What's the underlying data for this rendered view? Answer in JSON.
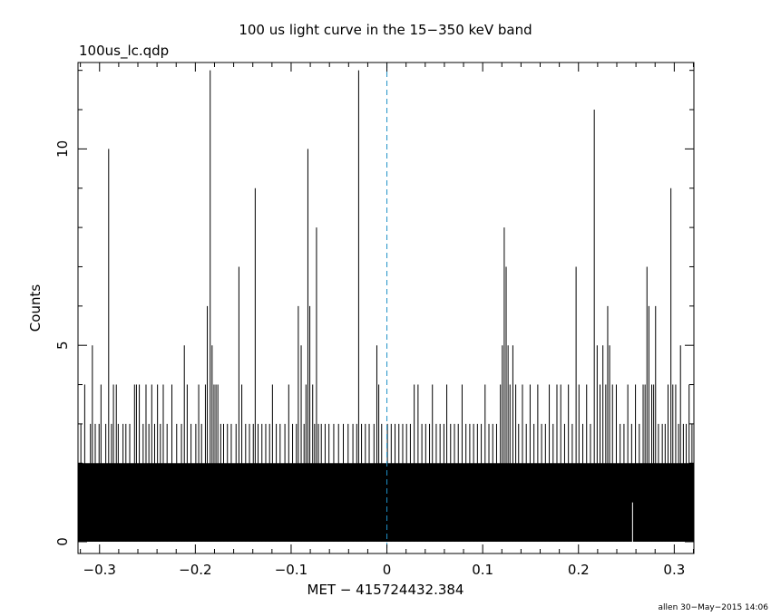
{
  "chart_data": {
    "type": "line",
    "title": "100 us light curve in the 15−350 keV band",
    "file_label": "100us_lc.qdp",
    "xlabel": "MET − 415724432.384",
    "ylabel": "Counts",
    "footer": "allen 30−May−2015 14:06",
    "xlim": [
      -0.3225,
      0.3205
    ],
    "ylim": [
      -0.3,
      12.2
    ],
    "x_ticks": [
      {
        "value": -0.3,
        "label": "−0.3"
      },
      {
        "value": -0.2,
        "label": "−0.2"
      },
      {
        "value": -0.1,
        "label": "−0.1"
      },
      {
        "value": 0,
        "label": "0"
      },
      {
        "value": 0.1,
        "label": "0.1"
      },
      {
        "value": 0.2,
        "label": "0.2"
      },
      {
        "value": 0.3,
        "label": "0.3"
      }
    ],
    "x_minor_step": 0.02,
    "y_ticks": [
      {
        "value": 0,
        "label": "0"
      },
      {
        "value": 5,
        "label": "5"
      },
      {
        "value": 10,
        "label": "10"
      }
    ],
    "y_minor_step": 1,
    "trigger_line": {
      "x": 0,
      "color": "#1e90c8",
      "style": "dashed"
    },
    "baseline": {
      "x_range": [
        -0.3225,
        0.3205
      ],
      "lower": 1,
      "upper": 2,
      "gap_x": 0.2555
    },
    "spikes": [
      [
        -0.3195,
        3
      ],
      [
        -0.3155,
        4
      ],
      [
        -0.3095,
        3
      ],
      [
        -0.3075,
        5
      ],
      [
        -0.3045,
        3
      ],
      [
        -0.3005,
        3
      ],
      [
        -0.2985,
        4
      ],
      [
        -0.2935,
        3
      ],
      [
        -0.2905,
        10
      ],
      [
        -0.2875,
        3
      ],
      [
        -0.2855,
        4
      ],
      [
        -0.2825,
        4
      ],
      [
        -0.2805,
        3
      ],
      [
        -0.2755,
        3
      ],
      [
        -0.2725,
        3
      ],
      [
        -0.2685,
        3
      ],
      [
        -0.2635,
        4
      ],
      [
        -0.2615,
        4
      ],
      [
        -0.2585,
        4
      ],
      [
        -0.2545,
        3
      ],
      [
        -0.2515,
        4
      ],
      [
        -0.2485,
        3
      ],
      [
        -0.2455,
        4
      ],
      [
        -0.2425,
        3
      ],
      [
        -0.2395,
        4
      ],
      [
        -0.2365,
        3
      ],
      [
        -0.2335,
        4
      ],
      [
        -0.2295,
        3
      ],
      [
        -0.2245,
        4
      ],
      [
        -0.2195,
        3
      ],
      [
        -0.2145,
        3
      ],
      [
        -0.2115,
        5
      ],
      [
        -0.2085,
        4
      ],
      [
        -0.2045,
        3
      ],
      [
        -0.1995,
        3
      ],
      [
        -0.1965,
        4
      ],
      [
        -0.1935,
        3
      ],
      [
        -0.1895,
        4
      ],
      [
        -0.1875,
        6
      ],
      [
        -0.1845,
        12
      ],
      [
        -0.1825,
        5
      ],
      [
        -0.1805,
        4
      ],
      [
        -0.1785,
        4
      ],
      [
        -0.1765,
        4
      ],
      [
        -0.1735,
        3
      ],
      [
        -0.1705,
        3
      ],
      [
        -0.1665,
        3
      ],
      [
        -0.1625,
        3
      ],
      [
        -0.1575,
        3
      ],
      [
        -0.1545,
        7
      ],
      [
        -0.1515,
        4
      ],
      [
        -0.1475,
        3
      ],
      [
        -0.1435,
        3
      ],
      [
        -0.1395,
        3
      ],
      [
        -0.1375,
        9
      ],
      [
        -0.1345,
        3
      ],
      [
        -0.1305,
        3
      ],
      [
        -0.1265,
        3
      ],
      [
        -0.1225,
        3
      ],
      [
        -0.1195,
        4
      ],
      [
        -0.1155,
        3
      ],
      [
        -0.1115,
        3
      ],
      [
        -0.1065,
        3
      ],
      [
        -0.1025,
        4
      ],
      [
        -0.0985,
        3
      ],
      [
        -0.0945,
        3
      ],
      [
        -0.0925,
        6
      ],
      [
        -0.0895,
        5
      ],
      [
        -0.0865,
        3
      ],
      [
        -0.0845,
        4
      ],
      [
        -0.0825,
        10
      ],
      [
        -0.0805,
        6
      ],
      [
        -0.0775,
        4
      ],
      [
        -0.0755,
        3
      ],
      [
        -0.0735,
        8
      ],
      [
        -0.0715,
        3
      ],
      [
        -0.0685,
        3
      ],
      [
        -0.0645,
        3
      ],
      [
        -0.0605,
        3
      ],
      [
        -0.0555,
        3
      ],
      [
        -0.0505,
        3
      ],
      [
        -0.0455,
        3
      ],
      [
        -0.0405,
        3
      ],
      [
        -0.0355,
        3
      ],
      [
        -0.0315,
        3
      ],
      [
        -0.0295,
        12
      ],
      [
        -0.0265,
        3
      ],
      [
        -0.0225,
        3
      ],
      [
        -0.0185,
        3
      ],
      [
        -0.0135,
        3
      ],
      [
        -0.0105,
        5
      ],
      [
        -0.0085,
        4
      ],
      [
        -0.0055,
        3
      ],
      [
        0.0005,
        3
      ],
      [
        0.0045,
        3
      ],
      [
        0.0085,
        3
      ],
      [
        0.0125,
        3
      ],
      [
        0.0165,
        3
      ],
      [
        0.0205,
        3
      ],
      [
        0.0245,
        3
      ],
      [
        0.0285,
        4
      ],
      [
        0.0325,
        4
      ],
      [
        0.0365,
        3
      ],
      [
        0.0405,
        3
      ],
      [
        0.0445,
        3
      ],
      [
        0.0475,
        4
      ],
      [
        0.0515,
        3
      ],
      [
        0.0555,
        3
      ],
      [
        0.0595,
        3
      ],
      [
        0.0625,
        4
      ],
      [
        0.0665,
        3
      ],
      [
        0.0705,
        3
      ],
      [
        0.0745,
        3
      ],
      [
        0.0785,
        4
      ],
      [
        0.0825,
        3
      ],
      [
        0.0865,
        3
      ],
      [
        0.0905,
        3
      ],
      [
        0.0945,
        3
      ],
      [
        0.0985,
        3
      ],
      [
        0.1025,
        4
      ],
      [
        0.1065,
        3
      ],
      [
        0.1105,
        3
      ],
      [
        0.1145,
        3
      ],
      [
        0.1185,
        4
      ],
      [
        0.1205,
        5
      ],
      [
        0.1225,
        8
      ],
      [
        0.1245,
        7
      ],
      [
        0.1265,
        5
      ],
      [
        0.1285,
        4
      ],
      [
        0.1315,
        5
      ],
      [
        0.1345,
        4
      ],
      [
        0.1375,
        3
      ],
      [
        0.1415,
        4
      ],
      [
        0.1455,
        3
      ],
      [
        0.1495,
        4
      ],
      [
        0.1535,
        3
      ],
      [
        0.1575,
        4
      ],
      [
        0.1615,
        3
      ],
      [
        0.1655,
        3
      ],
      [
        0.1695,
        4
      ],
      [
        0.1735,
        3
      ],
      [
        0.1775,
        4
      ],
      [
        0.1815,
        4
      ],
      [
        0.1855,
        3
      ],
      [
        0.1895,
        4
      ],
      [
        0.1935,
        3
      ],
      [
        0.1975,
        7
      ],
      [
        0.2005,
        4
      ],
      [
        0.2045,
        3
      ],
      [
        0.2085,
        4
      ],
      [
        0.2125,
        3
      ],
      [
        0.2165,
        11
      ],
      [
        0.2195,
        5
      ],
      [
        0.2225,
        4
      ],
      [
        0.2255,
        5
      ],
      [
        0.2285,
        4
      ],
      [
        0.2305,
        6
      ],
      [
        0.2325,
        5
      ],
      [
        0.2355,
        4
      ],
      [
        0.2395,
        4
      ],
      [
        0.2435,
        3
      ],
      [
        0.2475,
        3
      ],
      [
        0.2515,
        4
      ],
      [
        0.2555,
        3
      ],
      [
        0.2595,
        4
      ],
      [
        0.2635,
        3
      ],
      [
        0.2675,
        4
      ],
      [
        0.2695,
        4
      ],
      [
        0.2715,
        7
      ],
      [
        0.2735,
        6
      ],
      [
        0.2765,
        4
      ],
      [
        0.2785,
        4
      ],
      [
        0.2805,
        6
      ],
      [
        0.2835,
        3
      ],
      [
        0.2875,
        3
      ],
      [
        0.2905,
        3
      ],
      [
        0.2935,
        4
      ],
      [
        0.2965,
        9
      ],
      [
        0.2985,
        4
      ],
      [
        0.3015,
        4
      ],
      [
        0.3045,
        3
      ],
      [
        0.3065,
        5
      ],
      [
        0.3095,
        3
      ],
      [
        0.3125,
        3
      ],
      [
        0.3155,
        4
      ],
      [
        0.3185,
        3
      ]
    ]
  }
}
